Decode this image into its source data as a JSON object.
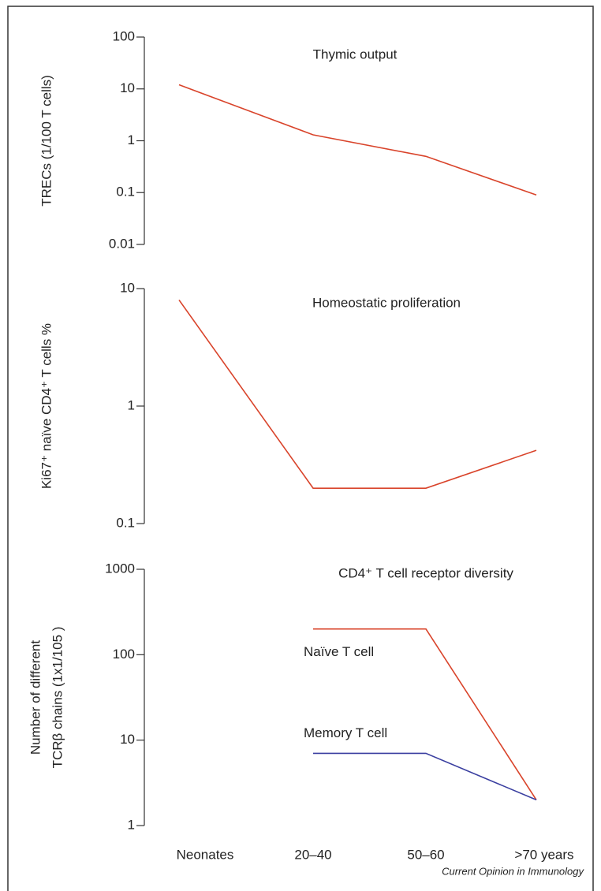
{
  "chart_data": [
    {
      "type": "line",
      "title": "Thymic output",
      "y_label": [
        "TRECs (1/100 T cells)"
      ],
      "log": true,
      "ylim": [
        0.01,
        100
      ],
      "yticks": [
        100,
        10,
        1,
        0.1,
        0.01
      ],
      "series": [
        {
          "color": "#d9442b",
          "values": [
            12,
            1.3,
            0.5,
            0.09
          ]
        }
      ]
    },
    {
      "type": "line",
      "title": "Homeostatic proliferation",
      "y_label": [
        "Ki67⁺ naïve CD4⁺ T cells %"
      ],
      "log": true,
      "ylim": [
        0.1,
        10
      ],
      "yticks": [
        10,
        1,
        0.1
      ],
      "series": [
        {
          "color": "#d9442b",
          "values": [
            8,
            0.2,
            0.2,
            0.42
          ]
        }
      ]
    },
    {
      "type": "line",
      "title": "CD4⁺ T cell receptor diversity",
      "y_label": [
        "Number of different",
        "TCRβ chains (1x1/105 )"
      ],
      "log": true,
      "ylim": [
        1,
        1000
      ],
      "yticks": [
        1000,
        100,
        10,
        1
      ],
      "categories": [
        "Neonates",
        "20–40",
        "50–60",
        ">70 years"
      ],
      "series": [
        {
          "name": "Naïve T cell",
          "color": "#d9442b",
          "values": [
            null,
            200,
            200,
            2
          ]
        },
        {
          "name": "Memory T cell",
          "color": "#3a3fa0",
          "values": [
            null,
            7,
            7,
            2
          ]
        }
      ]
    }
  ],
  "source": "Current Opinion in Immunology"
}
